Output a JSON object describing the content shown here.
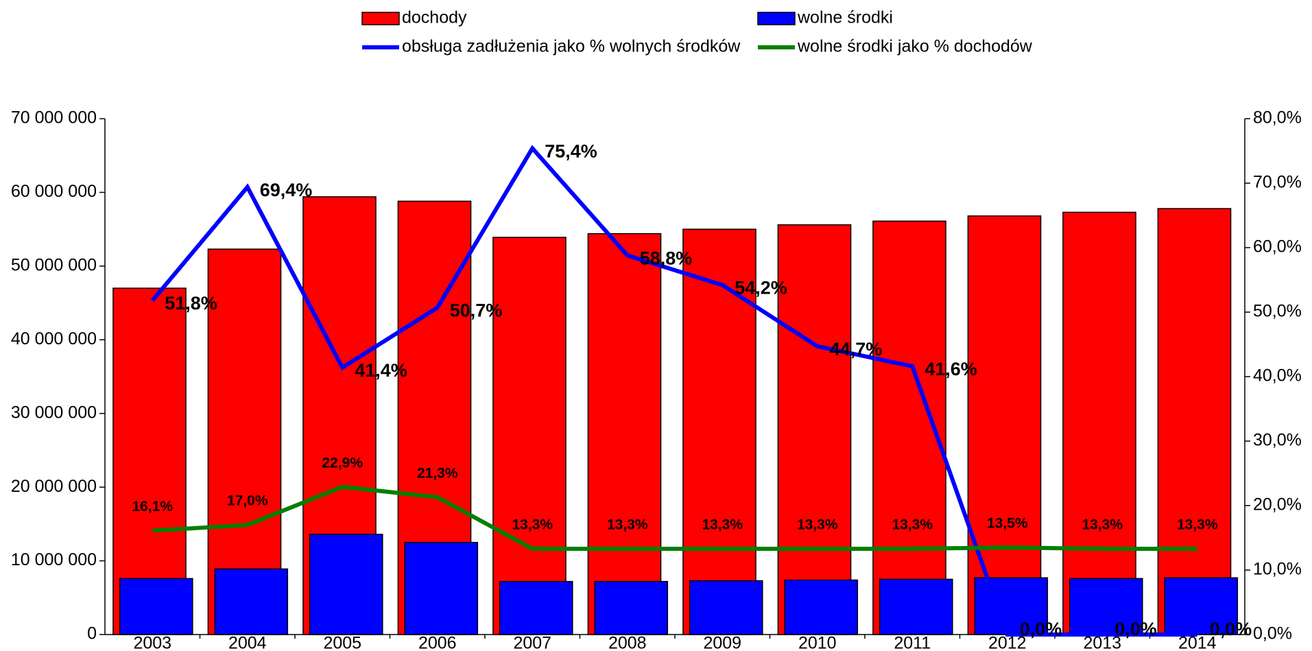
{
  "chart_data": {
    "type": "bar",
    "categories": [
      "2003",
      "2004",
      "2005",
      "2006",
      "2007",
      "2008",
      "2009",
      "2010",
      "2011",
      "2012",
      "2013",
      "2014"
    ],
    "series": [
      {
        "name": "dochody",
        "type": "bar",
        "color": "#ff0000",
        "values": [
          47000000,
          52300000,
          59400000,
          58800000,
          53900000,
          54400000,
          55000000,
          55600000,
          56100000,
          56800000,
          57300000,
          57800000
        ]
      },
      {
        "name": "wolne środki",
        "type": "bar",
        "color": "#0000ff",
        "values": [
          7600000,
          8900000,
          13600000,
          12500000,
          7200000,
          7200000,
          7300000,
          7400000,
          7500000,
          7700000,
          7600000,
          7700000
        ]
      },
      {
        "name": "obsługa zadłużenia jako % wolnych środków",
        "type": "line",
        "axis": "y2",
        "color": "#0000ff",
        "values": [
          51.8,
          69.4,
          41.4,
          50.7,
          75.4,
          58.8,
          54.2,
          44.7,
          41.6,
          0,
          0,
          0
        ],
        "value_labels": [
          "51,8%",
          "69,4%",
          "41,4%",
          "50,7%",
          "75,4%",
          "58,8%",
          "54,2%",
          "44,7%",
          "41,6%",
          "0,0%",
          "0,0%",
          "0,0%"
        ]
      },
      {
        "name": "wolne środki jako % dochodów",
        "type": "line",
        "axis": "y2",
        "color": "#008000",
        "values": [
          16.1,
          17.0,
          22.9,
          21.3,
          13.3,
          13.3,
          13.3,
          13.3,
          13.3,
          13.5,
          13.3,
          13.3
        ],
        "value_labels": [
          "16,1%",
          "17,0%",
          "22,9%",
          "21,3%",
          "13,3%",
          "13,3%",
          "13,3%",
          "13,3%",
          "13,3%",
          "13,5%",
          "13,3%",
          "13,3%"
        ]
      }
    ],
    "ylim": [
      0,
      70000000
    ],
    "yticks": [
      {
        "value": 0,
        "label": "0"
      },
      {
        "value": 10000000,
        "label": "10 000 000"
      },
      {
        "value": 20000000,
        "label": "20 000 000"
      },
      {
        "value": 30000000,
        "label": "30 000 000"
      },
      {
        "value": 40000000,
        "label": "40 000 000"
      },
      {
        "value": 50000000,
        "label": "50 000 000"
      },
      {
        "value": 60000000,
        "label": "60 000 000"
      },
      {
        "value": 70000000,
        "label": "70 000 000"
      }
    ],
    "y2lim": [
      0,
      80
    ],
    "y2ticks": [
      {
        "value": 0,
        "label": "0,0%"
      },
      {
        "value": 10,
        "label": "10,0%"
      },
      {
        "value": 20,
        "label": "20,0%"
      },
      {
        "value": 30,
        "label": "30,0%"
      },
      {
        "value": 40,
        "label": "40,0%"
      },
      {
        "value": 50,
        "label": "50,0%"
      },
      {
        "value": 60,
        "label": "60,0%"
      },
      {
        "value": 70,
        "label": "70,0%"
      },
      {
        "value": 80,
        "label": "80,0%"
      }
    ],
    "legend": "top"
  }
}
